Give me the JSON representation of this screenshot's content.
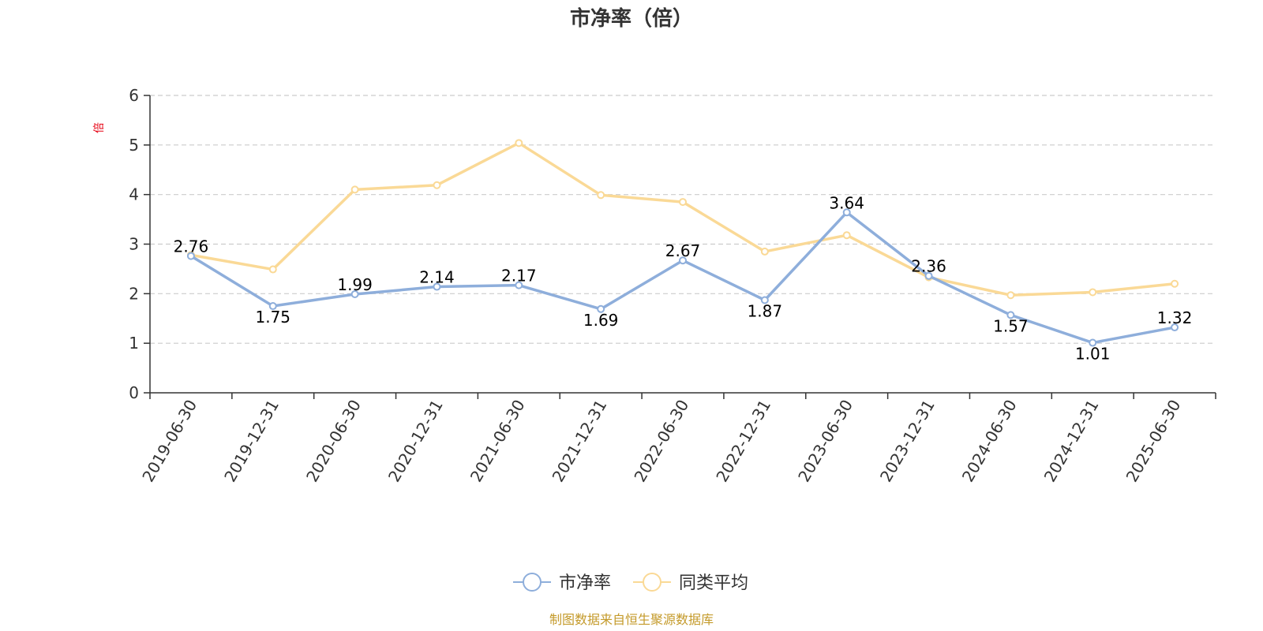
{
  "chart_data": {
    "type": "line",
    "title": "市净率（倍）",
    "ylabel": "倍",
    "xlabel": "",
    "ylim": [
      0,
      6
    ],
    "yticks": [
      0,
      1,
      2,
      3,
      4,
      5,
      6
    ],
    "grid": "horizontal-dashed",
    "legend_position": "bottom",
    "categories": [
      "2019-06-30",
      "2019-12-31",
      "2020-06-30",
      "2020-12-31",
      "2021-06-30",
      "2021-12-31",
      "2022-06-30",
      "2022-12-31",
      "2023-06-30",
      "2023-12-31",
      "2024-06-30",
      "2024-12-31",
      "2025-06-30"
    ],
    "series": [
      {
        "name": "市净率",
        "color": "#8eaedb",
        "values": [
          2.76,
          1.75,
          1.99,
          2.14,
          2.17,
          1.69,
          2.67,
          1.87,
          3.64,
          2.36,
          1.57,
          1.01,
          1.32
        ],
        "data_labels": [
          "2.76",
          "1.75",
          "1.99",
          "2.14",
          "2.17",
          "1.69",
          "2.67",
          "1.87",
          "3.64",
          "2.36",
          "1.57",
          "1.01",
          "1.32"
        ]
      },
      {
        "name": "同类平均",
        "color": "#fad996",
        "values": [
          2.78,
          2.49,
          4.1,
          4.19,
          5.04,
          3.99,
          3.85,
          2.85,
          3.18,
          2.33,
          1.97,
          2.03,
          2.2
        ]
      }
    ],
    "source": "制图数据来自恒生聚源数据库"
  }
}
